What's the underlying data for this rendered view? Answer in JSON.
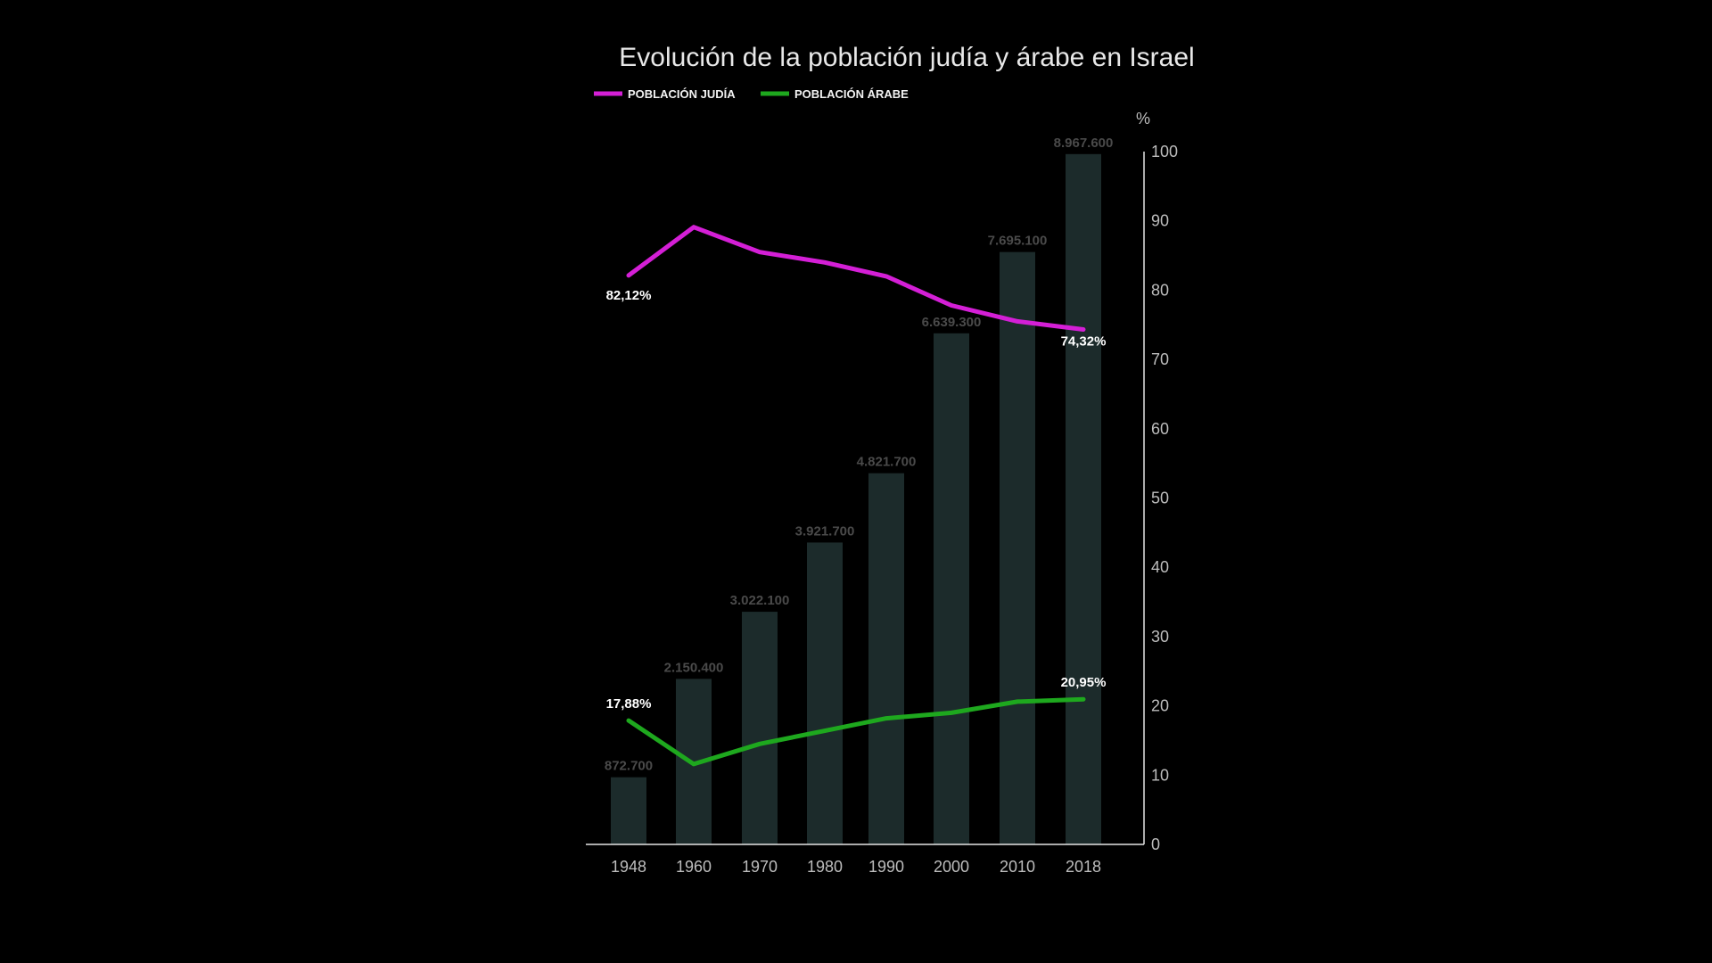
{
  "chart_data": {
    "type": "bar",
    "title": "Evolución de la población judía y árabe en Israel",
    "categories": [
      "1948",
      "1960",
      "1970",
      "1980",
      "1990",
      "2000",
      "2010",
      "2018"
    ],
    "bars": {
      "values": [
        872700,
        2150400,
        3022100,
        3921700,
        4821700,
        6639300,
        7695100,
        8967600
      ],
      "labels": [
        "872.700",
        "2.150.400",
        "3.022.100",
        "3.921.700",
        "4.821.700",
        "6.639.300",
        "7.695.100",
        "8.967.600"
      ],
      "color": "#1c2b2b",
      "ylim": [
        0,
        9000000
      ]
    },
    "series": [
      {
        "name": "POBLACIÓN JUDÍA",
        "color": "#d41fd6",
        "values": [
          82.12,
          89.1,
          85.5,
          84.0,
          82.0,
          77.8,
          75.5,
          74.32
        ],
        "point_labels": [
          {
            "index": 0,
            "text": "82,12%"
          },
          {
            "index": 7,
            "text": "74,32%"
          }
        ]
      },
      {
        "name": "POBLACIÓN ÁRABE",
        "color": "#1ea81e",
        "values": [
          17.88,
          11.6,
          14.5,
          16.4,
          18.2,
          19.0,
          20.6,
          20.95
        ],
        "point_labels": [
          {
            "index": 0,
            "text": "17,88%"
          },
          {
            "index": 7,
            "text": "20,95%"
          }
        ]
      }
    ],
    "y_axis": {
      "unit": "%",
      "ylim": [
        0,
        100
      ],
      "ticks": [
        "0",
        "10",
        "20",
        "30",
        "40",
        "50",
        "60",
        "70",
        "80",
        "90",
        "100"
      ],
      "position": "right"
    },
    "legend": {
      "placement": "top-left"
    },
    "grid": false
  }
}
